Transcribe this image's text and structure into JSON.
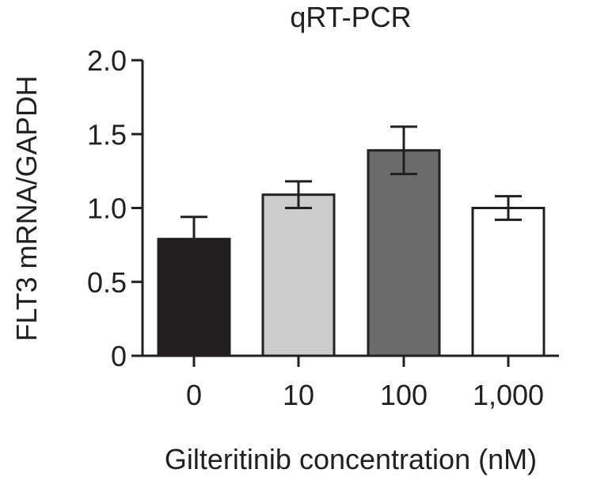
{
  "chart_data": {
    "type": "bar",
    "title": "qRT-PCR",
    "xlabel": "Gilteritinib concentration (nM)",
    "ylabel": "FLT3 mRNA/GAPDH",
    "categories": [
      "0",
      "10",
      "100",
      "1,000"
    ],
    "values": [
      0.79,
      1.09,
      1.39,
      1.0
    ],
    "errors": [
      0.15,
      0.09,
      0.16,
      0.08
    ],
    "ylim": [
      0,
      2.0
    ],
    "yticks": [
      "0",
      "0.5",
      "1.0",
      "1.5",
      "2.0"
    ],
    "ytick_values": [
      0,
      0.5,
      1.0,
      1.5,
      2.0
    ],
    "bar_colors": [
      "#231f20",
      "#cccccc",
      "#6b6b6b",
      "#ffffff"
    ],
    "grid": false
  },
  "colors": {
    "ink": "#231f20",
    "background": "#ffffff"
  }
}
